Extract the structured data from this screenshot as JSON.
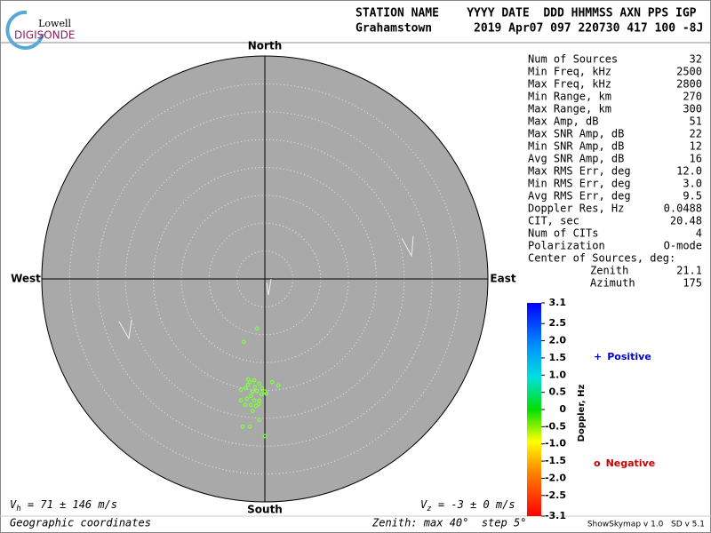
{
  "header": {
    "logo_top": "Lowell",
    "logo_bottom": "DIGISONDE",
    "line1": "STATION NAME    YYYY DATE  DDD HHMMSS AXN PPS IGP",
    "line2": "Grahamstown      2019 Apr07 097 220730 417 100 -8J"
  },
  "chart_data": {
    "type": "skymap",
    "directions": {
      "north": "North",
      "south": "South",
      "east": "East",
      "west": "West"
    },
    "rlim": [
      0,
      40
    ],
    "rticks": [
      5,
      10,
      15,
      20,
      25,
      30,
      35
    ],
    "color": "#7fff3f",
    "x": [
      -1.4,
      -3.8,
      -3.0,
      -2.7,
      -1.0,
      1.3,
      2.4,
      -1.8,
      -3.5,
      -4.3,
      -2.2,
      -1.4,
      0.0,
      -2.5,
      -0.6,
      -3.2,
      -4.3,
      -1.9,
      -1.0,
      0.3,
      -3.5,
      -2.5,
      -1.6,
      -1.1,
      -2.2,
      -1.0,
      -4.0,
      -2.7,
      0.0,
      -3.0,
      -0.5,
      -1.9
    ],
    "y": [
      -8.9,
      -11.3,
      -18.0,
      -18.5,
      -18.8,
      -18.5,
      -19.1,
      -19.4,
      -19.6,
      -19.9,
      -20.2,
      -20.1,
      -20.2,
      -21.0,
      -20.7,
      -21.5,
      -21.8,
      -21.8,
      -21.8,
      -20.6,
      -22.6,
      -22.6,
      -22.8,
      -22.5,
      -23.7,
      -25.3,
      -26.5,
      -26.5,
      -28.2,
      -19.0,
      -19.6,
      -18.2
    ],
    "colorbar": {
      "title": "Doppler, Hz",
      "lim": [
        -3.1,
        3.1
      ],
      "ticks": [
        3.1,
        2.5,
        {
          "value": 2,
          "label": "2.0"
        },
        1.5,
        {
          "value": 1,
          "label": "1.0"
        },
        0.5,
        0,
        -0.5,
        {
          "value": -1,
          "label": "-1.0"
        },
        -1.5,
        {
          "value": -2,
          "label": "-2.0"
        },
        -2.5,
        -3.1
      ]
    },
    "legend": [
      {
        "symbol": "+",
        "name": "Positive",
        "color": "#0000cc"
      },
      {
        "symbol": "o",
        "name": "Negative",
        "color": "#cc0000"
      }
    ]
  },
  "stats": {
    "rows": [
      [
        "Num of Sources",
        "32"
      ],
      [
        "Min Freq, kHz",
        "2500"
      ],
      [
        "Max Freq, kHz",
        "2800"
      ],
      [
        "Min Range, km",
        "270"
      ],
      [
        "Max Range, km",
        "300"
      ],
      [
        "Max Amp, dB",
        "51"
      ],
      [
        "Max SNR Amp, dB",
        "22"
      ],
      [
        "Min SNR Amp, dB",
        "12"
      ],
      [
        "Avg SNR Amp, dB",
        "16"
      ],
      [
        "Max RMS Err, deg",
        "12.0"
      ],
      [
        "Min RMS Err, deg",
        "3.0"
      ],
      [
        "Avg RMS Err, deg",
        "9.5"
      ],
      [
        "Doppler Res, Hz",
        "0.0488"
      ],
      [
        "CIT, sec",
        "20.48"
      ],
      [
        "Num of CITs",
        "4"
      ],
      [
        "Polarization",
        "O-mode"
      ]
    ],
    "center": {
      "label": "Center of Sources, deg:",
      "rows": [
        [
          "Zenith",
          "21.1"
        ],
        [
          "Azimuth",
          "175"
        ]
      ]
    }
  },
  "footer": {
    "vh": {
      "symbol": "V",
      "sub": "h",
      "text": "= 71 ± 146 m/s"
    },
    "vz": {
      "symbol": "V",
      "sub": "z",
      "text": "= -3 ± 0 m/s"
    },
    "coords": "Geographic coordinates",
    "zenith": "Zenith: max 40°  step 5°",
    "version": "ShowSkymap v 1.0   SD v 5.1"
  }
}
